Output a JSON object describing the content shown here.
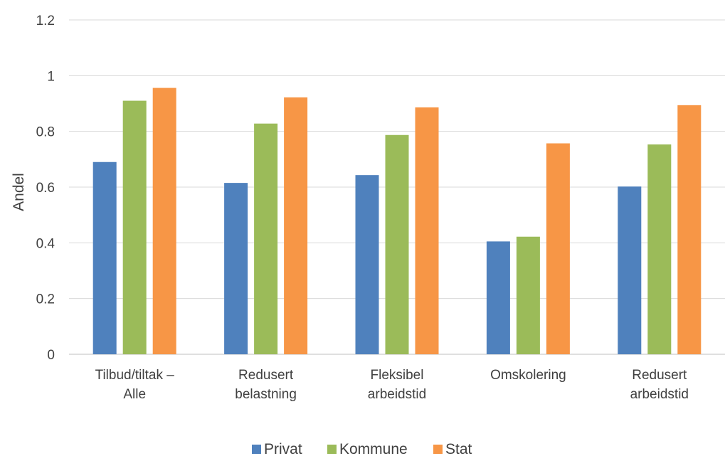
{
  "chart_data": {
    "type": "bar",
    "title": "",
    "xlabel": "",
    "ylabel": "Andel",
    "ylim": [
      0,
      1.2
    ],
    "yticks": [
      "0",
      "0.2",
      "0.4",
      "0.6",
      "0.8",
      "1",
      "1.2"
    ],
    "grid": true,
    "legend_position": "bottom",
    "categories": [
      [
        "Tilbud/tiltak –",
        "Alle"
      ],
      [
        "Redusert",
        "belastning"
      ],
      [
        "Fleksibel",
        "arbeidstid"
      ],
      [
        "Omskolering"
      ],
      [
        "Redusert",
        "arbeidstid"
      ]
    ],
    "series": [
      {
        "name": "Privat",
        "color": "#4f81bd",
        "values": [
          0.69,
          0.615,
          0.643,
          0.405,
          0.602
        ]
      },
      {
        "name": "Kommune",
        "color": "#9bbb59",
        "values": [
          0.91,
          0.828,
          0.787,
          0.422,
          0.753
        ]
      },
      {
        "name": "Stat",
        "color": "#f79646",
        "values": [
          0.956,
          0.922,
          0.886,
          0.757,
          0.894
        ]
      }
    ]
  }
}
